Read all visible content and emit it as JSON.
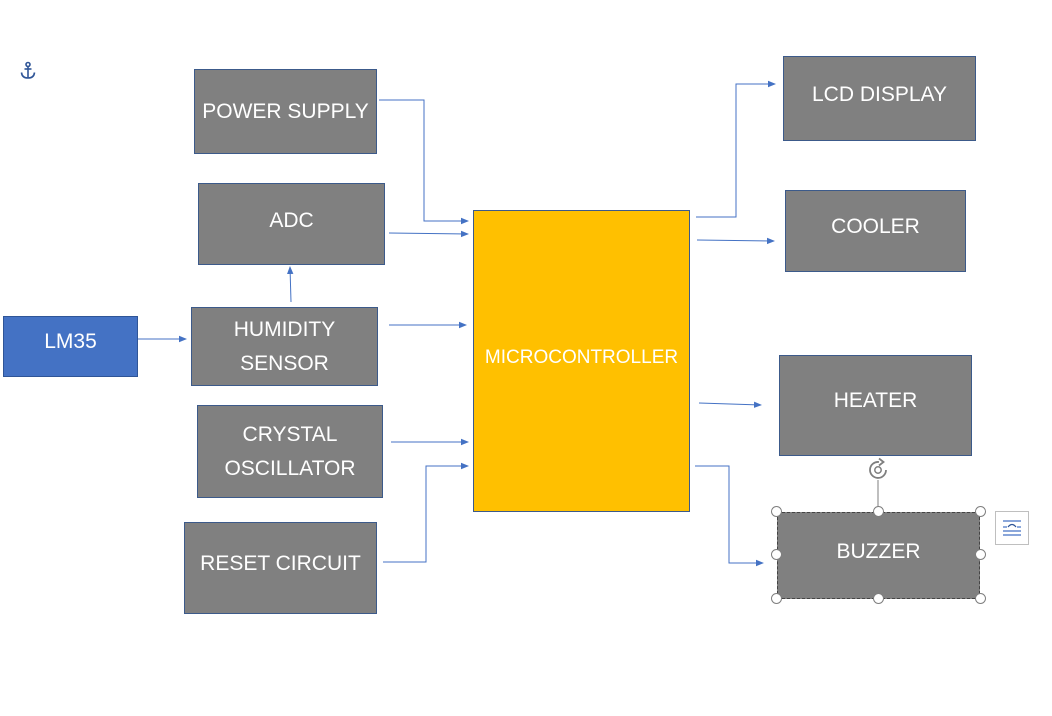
{
  "diagram": {
    "blocks": {
      "power_supply": "POWER SUPPLY",
      "adc": "ADC",
      "lm35": "LM35",
      "humidity_sensor": [
        "HUMIDITY",
        "SENSOR"
      ],
      "crystal_oscillator": [
        "CRYSTAL",
        "OSCILLATOR"
      ],
      "reset_circuit": "RESET CIRCUIT",
      "microcontroller": "MICROCONTROLLER",
      "lcd_display": "LCD DISPLAY",
      "cooler": "COOLER",
      "heater": "HEATER",
      "buzzer": "BUZZER"
    },
    "colors": {
      "block_gray": "#808080",
      "block_blue": "#4472c4",
      "block_yellow": "#ffc000",
      "connector": "#4472c4"
    },
    "icons": {
      "anchor": "anchor-icon",
      "rotate": "rotate-handle-icon",
      "layout_options": "layout-options-icon"
    }
  }
}
